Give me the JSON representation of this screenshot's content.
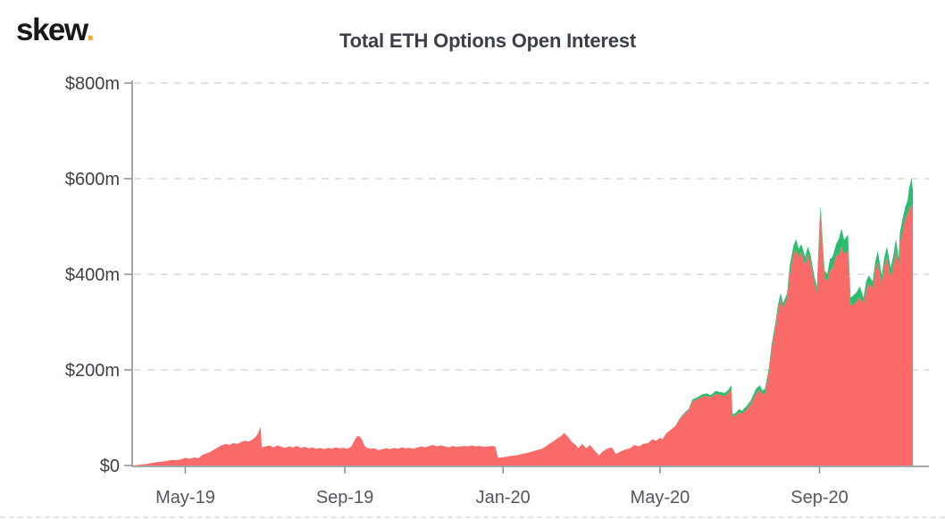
{
  "header": {
    "logo_text": "skew",
    "logo_dot": ".",
    "title": "Total ETH Options Open Interest"
  },
  "chart_data": {
    "type": "area",
    "stacked": true,
    "title": "Total ETH Options Open Interest",
    "y_unit": "USD millions",
    "ylim": [
      0,
      800
    ],
    "grid": "dashed-horizontal",
    "legend": "none",
    "x_domain": [
      "2019-03-21",
      "2020-11-12"
    ],
    "y_ticks": [
      {
        "value": 0,
        "label": "$0"
      },
      {
        "value": 200,
        "label": "$200m"
      },
      {
        "value": 400,
        "label": "$400m"
      },
      {
        "value": 600,
        "label": "$600m"
      },
      {
        "value": 800,
        "label": "$800m"
      }
    ],
    "x_ticks": [
      {
        "date": "2019-05-01",
        "label": "May-19"
      },
      {
        "date": "2019-09-01",
        "label": "Sep-19"
      },
      {
        "date": "2020-01-01",
        "label": "Jan-20"
      },
      {
        "date": "2020-05-01",
        "label": "May-20"
      },
      {
        "date": "2020-09-01",
        "label": "Sep-20"
      }
    ],
    "colors": {
      "series_red": "#f96a68",
      "series_green": "#29bd70",
      "axis": "#8c8c8c",
      "grid": "#e2e2e2",
      "y_label": "#3d4045",
      "x_label": "#54575c",
      "title": "#3b3f46",
      "logo": "#17181a",
      "logo_dot": "#f7a825",
      "background": "#ffffff"
    },
    "series_names": [
      "open_interest_red_$m",
      "open_interest_green_$m"
    ],
    "points_format": [
      "date",
      "red_value_$m",
      "green_value_$m"
    ],
    "points": [
      [
        "2019-03-21",
        0,
        0
      ],
      [
        "2019-03-24",
        1,
        0
      ],
      [
        "2019-03-28",
        2,
        0
      ],
      [
        "2019-04-01",
        3,
        0
      ],
      [
        "2019-04-05",
        5,
        0
      ],
      [
        "2019-04-09",
        7,
        0
      ],
      [
        "2019-04-13",
        8,
        0
      ],
      [
        "2019-04-17",
        10,
        0
      ],
      [
        "2019-04-21",
        12,
        0
      ],
      [
        "2019-04-24",
        11,
        0
      ],
      [
        "2019-04-28",
        13,
        0
      ],
      [
        "2019-05-01",
        16,
        0
      ],
      [
        "2019-05-04",
        14,
        0
      ],
      [
        "2019-05-08",
        17,
        0
      ],
      [
        "2019-05-11",
        15,
        0
      ],
      [
        "2019-05-14",
        22,
        0
      ],
      [
        "2019-05-17",
        25,
        0
      ],
      [
        "2019-05-20",
        28,
        0
      ],
      [
        "2019-05-23",
        33,
        0
      ],
      [
        "2019-05-26",
        38,
        0
      ],
      [
        "2019-05-29",
        42,
        0
      ],
      [
        "2019-06-01",
        45,
        0
      ],
      [
        "2019-06-04",
        43,
        0
      ],
      [
        "2019-06-07",
        47,
        0
      ],
      [
        "2019-06-10",
        45,
        0
      ],
      [
        "2019-06-13",
        49,
        0
      ],
      [
        "2019-06-16",
        52,
        0
      ],
      [
        "2019-06-19",
        50,
        0
      ],
      [
        "2019-06-22",
        55,
        0
      ],
      [
        "2019-06-24",
        59,
        0
      ],
      [
        "2019-06-26",
        67,
        0
      ],
      [
        "2019-06-28",
        81,
        0
      ],
      [
        "2019-06-29",
        38,
        0
      ],
      [
        "2019-07-02",
        40,
        0
      ],
      [
        "2019-07-05",
        42,
        0
      ],
      [
        "2019-07-08",
        38,
        0
      ],
      [
        "2019-07-11",
        42,
        0
      ],
      [
        "2019-07-14",
        39,
        0
      ],
      [
        "2019-07-17",
        37,
        0
      ],
      [
        "2019-07-20",
        40,
        0
      ],
      [
        "2019-07-23",
        38,
        0
      ],
      [
        "2019-07-26",
        41,
        0
      ],
      [
        "2019-07-29",
        37,
        0
      ],
      [
        "2019-08-01",
        39,
        0
      ],
      [
        "2019-08-04",
        36,
        0
      ],
      [
        "2019-08-07",
        38,
        0
      ],
      [
        "2019-08-10",
        35,
        0
      ],
      [
        "2019-08-13",
        37,
        0
      ],
      [
        "2019-08-16",
        34,
        0
      ],
      [
        "2019-08-19",
        37,
        0
      ],
      [
        "2019-08-22",
        35,
        0
      ],
      [
        "2019-08-25",
        38,
        0
      ],
      [
        "2019-08-28",
        36,
        0
      ],
      [
        "2019-08-31",
        37,
        0
      ],
      [
        "2019-09-03",
        35,
        0
      ],
      [
        "2019-09-06",
        40,
        0
      ],
      [
        "2019-09-08",
        50,
        0
      ],
      [
        "2019-09-10",
        60,
        0
      ],
      [
        "2019-09-12",
        62,
        0
      ],
      [
        "2019-09-14",
        55,
        0
      ],
      [
        "2019-09-16",
        42,
        0
      ],
      [
        "2019-09-18",
        37,
        0
      ],
      [
        "2019-09-21",
        35,
        0
      ],
      [
        "2019-09-24",
        36,
        0
      ],
      [
        "2019-09-27",
        32,
        0
      ],
      [
        "2019-09-30",
        34,
        0
      ],
      [
        "2019-10-03",
        36,
        0
      ],
      [
        "2019-10-06",
        34,
        0
      ],
      [
        "2019-10-09",
        37,
        0
      ],
      [
        "2019-10-12",
        35,
        0
      ],
      [
        "2019-10-15",
        38,
        0
      ],
      [
        "2019-10-18",
        36,
        0
      ],
      [
        "2019-10-21",
        37,
        0
      ],
      [
        "2019-10-24",
        35,
        0
      ],
      [
        "2019-10-27",
        38,
        0
      ],
      [
        "2019-10-30",
        40,
        0
      ],
      [
        "2019-11-02",
        38,
        0
      ],
      [
        "2019-11-05",
        41,
        0
      ],
      [
        "2019-11-08",
        43,
        0
      ],
      [
        "2019-11-11",
        40,
        0
      ],
      [
        "2019-11-14",
        42,
        0
      ],
      [
        "2019-11-17",
        40,
        0
      ],
      [
        "2019-11-20",
        38,
        0
      ],
      [
        "2019-11-23",
        41,
        0
      ],
      [
        "2019-11-26",
        39,
        0
      ],
      [
        "2019-11-29",
        40,
        0
      ],
      [
        "2019-12-02",
        41,
        0
      ],
      [
        "2019-12-05",
        40,
        0
      ],
      [
        "2019-12-08",
        42,
        0
      ],
      [
        "2019-12-11",
        40,
        0
      ],
      [
        "2019-12-14",
        41,
        0
      ],
      [
        "2019-12-17",
        39,
        0
      ],
      [
        "2019-12-20",
        40,
        0
      ],
      [
        "2019-12-23",
        41,
        0
      ],
      [
        "2019-12-26",
        40,
        0
      ],
      [
        "2019-12-28",
        16,
        0
      ],
      [
        "2019-12-31",
        17,
        0
      ],
      [
        "2020-01-03",
        18,
        0
      ],
      [
        "2020-01-07",
        20,
        0
      ],
      [
        "2020-01-11",
        21,
        0
      ],
      [
        "2020-01-15",
        24,
        0
      ],
      [
        "2020-01-19",
        26,
        0
      ],
      [
        "2020-01-23",
        29,
        0
      ],
      [
        "2020-01-27",
        32,
        0
      ],
      [
        "2020-01-31",
        35,
        0
      ],
      [
        "2020-02-03",
        40,
        0
      ],
      [
        "2020-02-06",
        46,
        0
      ],
      [
        "2020-02-09",
        51,
        0
      ],
      [
        "2020-02-12",
        57,
        0
      ],
      [
        "2020-02-15",
        62,
        0
      ],
      [
        "2020-02-17",
        68,
        0
      ],
      [
        "2020-02-19",
        63,
        0
      ],
      [
        "2020-02-21",
        57,
        0
      ],
      [
        "2020-02-23",
        49,
        0
      ],
      [
        "2020-02-26",
        43,
        0
      ],
      [
        "2020-02-28",
        36,
        0
      ],
      [
        "2020-03-02",
        45,
        0
      ],
      [
        "2020-03-05",
        36,
        0
      ],
      [
        "2020-03-08",
        43,
        0
      ],
      [
        "2020-03-12",
        30,
        0
      ],
      [
        "2020-03-15",
        21,
        0
      ],
      [
        "2020-03-18",
        30,
        0
      ],
      [
        "2020-03-22",
        36,
        0
      ],
      [
        "2020-03-25",
        38,
        0
      ],
      [
        "2020-03-28",
        24,
        0
      ],
      [
        "2020-04-01",
        30,
        0
      ],
      [
        "2020-04-05",
        34,
        0
      ],
      [
        "2020-04-08",
        36,
        0
      ],
      [
        "2020-04-11",
        43,
        0
      ],
      [
        "2020-04-15",
        40,
        0
      ],
      [
        "2020-04-18",
        45,
        0
      ],
      [
        "2020-04-22",
        47,
        0
      ],
      [
        "2020-04-25",
        55,
        0
      ],
      [
        "2020-04-28",
        52,
        0
      ],
      [
        "2020-05-01",
        58,
        0
      ],
      [
        "2020-05-03",
        55,
        0
      ],
      [
        "2020-05-06",
        68,
        0
      ],
      [
        "2020-05-09",
        74,
        0
      ],
      [
        "2020-05-13",
        83,
        0
      ],
      [
        "2020-05-16",
        96,
        2
      ],
      [
        "2020-05-20",
        109,
        2
      ],
      [
        "2020-05-23",
        115,
        3
      ],
      [
        "2020-05-26",
        134,
        4
      ],
      [
        "2020-05-30",
        139,
        4
      ],
      [
        "2020-06-02",
        143,
        5
      ],
      [
        "2020-06-06",
        146,
        5
      ],
      [
        "2020-06-09",
        142,
        5
      ],
      [
        "2020-06-13",
        150,
        6
      ],
      [
        "2020-06-16",
        148,
        6
      ],
      [
        "2020-06-20",
        145,
        7
      ],
      [
        "2020-06-23",
        152,
        7
      ],
      [
        "2020-06-25",
        160,
        8
      ],
      [
        "2020-06-26",
        102,
        6
      ],
      [
        "2020-06-28",
        104,
        5
      ],
      [
        "2020-07-01",
        112,
        6
      ],
      [
        "2020-07-03",
        108,
        6
      ],
      [
        "2020-07-07",
        118,
        7
      ],
      [
        "2020-07-10",
        128,
        8
      ],
      [
        "2020-07-14",
        150,
        10
      ],
      [
        "2020-07-17",
        158,
        10
      ],
      [
        "2020-07-19",
        148,
        8
      ],
      [
        "2020-07-21",
        152,
        9
      ],
      [
        "2020-07-24",
        195,
        9
      ],
      [
        "2020-07-26",
        245,
        8
      ],
      [
        "2020-07-29",
        288,
        10
      ],
      [
        "2020-07-31",
        323,
        13
      ],
      [
        "2020-08-02",
        348,
        12
      ],
      [
        "2020-08-04",
        330,
        10
      ],
      [
        "2020-08-07",
        350,
        10
      ],
      [
        "2020-08-09",
        398,
        19
      ],
      [
        "2020-08-12",
        442,
        18
      ],
      [
        "2020-08-14",
        452,
        22
      ],
      [
        "2020-08-16",
        436,
        17
      ],
      [
        "2020-08-18",
        447,
        16
      ],
      [
        "2020-08-21",
        418,
        18
      ],
      [
        "2020-08-23",
        442,
        16
      ],
      [
        "2020-08-25",
        426,
        16
      ],
      [
        "2020-08-28",
        382,
        14
      ],
      [
        "2020-08-30",
        362,
        12
      ],
      [
        "2020-09-01",
        490,
        20
      ],
      [
        "2020-09-02",
        527,
        16
      ],
      [
        "2020-09-04",
        430,
        15
      ],
      [
        "2020-09-05",
        392,
        16
      ],
      [
        "2020-09-07",
        385,
        15
      ],
      [
        "2020-09-09",
        408,
        24
      ],
      [
        "2020-09-11",
        412,
        24
      ],
      [
        "2020-09-14",
        440,
        24
      ],
      [
        "2020-09-16",
        440,
        34
      ],
      [
        "2020-09-18",
        458,
        38
      ],
      [
        "2020-09-20",
        442,
        30
      ],
      [
        "2020-09-23",
        450,
        33
      ],
      [
        "2020-09-25",
        336,
        15
      ],
      [
        "2020-09-28",
        338,
        20
      ],
      [
        "2020-09-30",
        345,
        19
      ],
      [
        "2020-10-02",
        352,
        23
      ],
      [
        "2020-10-05",
        340,
        11
      ],
      [
        "2020-10-07",
        366,
        19
      ],
      [
        "2020-10-09",
        380,
        18
      ],
      [
        "2020-10-12",
        372,
        13
      ],
      [
        "2020-10-14",
        408,
        18
      ],
      [
        "2020-10-16",
        426,
        23
      ],
      [
        "2020-10-19",
        380,
        18
      ],
      [
        "2020-10-21",
        417,
        19
      ],
      [
        "2020-10-23",
        436,
        22
      ],
      [
        "2020-10-26",
        392,
        21
      ],
      [
        "2020-10-28",
        420,
        20
      ],
      [
        "2020-10-30",
        449,
        25
      ],
      [
        "2020-11-01",
        415,
        19
      ],
      [
        "2020-11-02",
        464,
        23
      ],
      [
        "2020-11-04",
        489,
        26
      ],
      [
        "2020-11-06",
        515,
        25
      ],
      [
        "2020-11-08",
        527,
        28
      ],
      [
        "2020-11-09",
        536,
        41
      ],
      [
        "2020-11-11",
        545,
        57
      ],
      [
        "2020-11-12",
        528,
        49
      ]
    ]
  }
}
